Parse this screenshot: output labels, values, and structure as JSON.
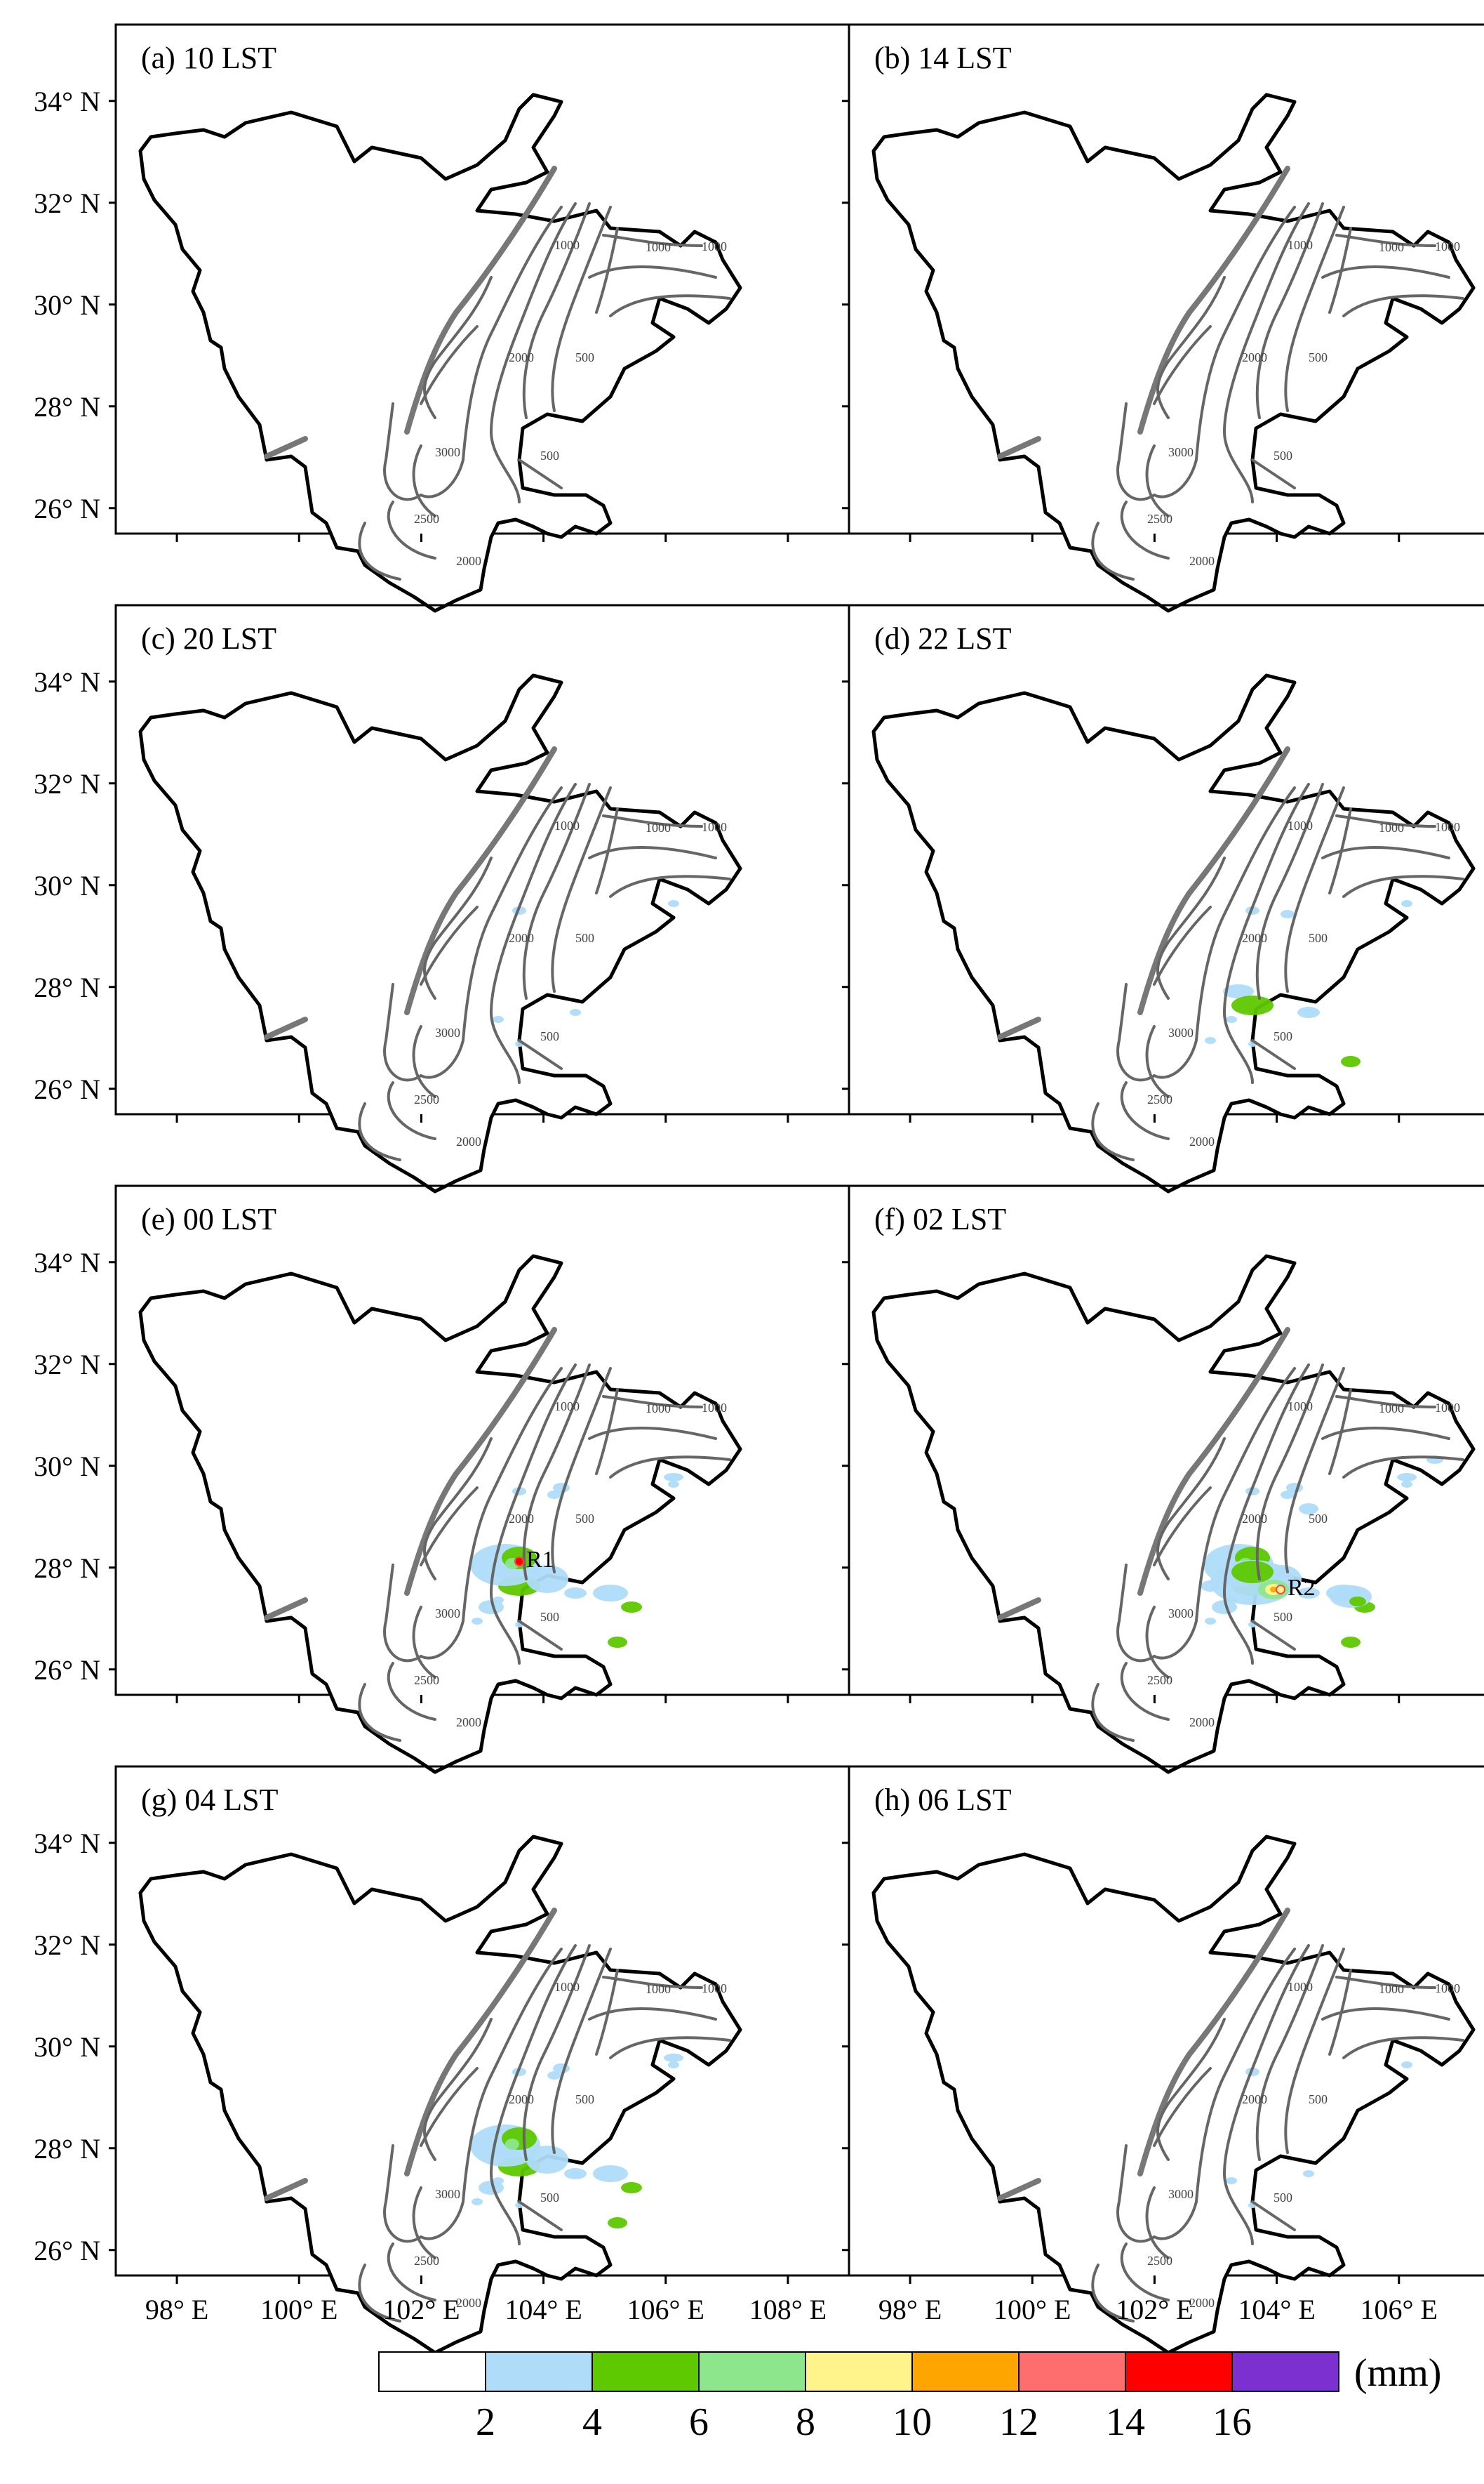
{
  "panels": [
    {
      "id": "a",
      "label": "(a) 10 LST",
      "precip_level": 0,
      "markers": []
    },
    {
      "id": "b",
      "label": "(b) 14 LST",
      "precip_level": 0,
      "markers": []
    },
    {
      "id": "c",
      "label": "(c) 20 LST",
      "precip_level": 1,
      "markers": []
    },
    {
      "id": "d",
      "label": "(d) 22 LST",
      "precip_level": 2,
      "markers": []
    },
    {
      "id": "e",
      "label": "(e) 00 LST",
      "precip_level": 3,
      "markers": [
        "R1"
      ]
    },
    {
      "id": "f",
      "label": "(f) 02 LST",
      "precip_level": 4,
      "markers": [
        "R2"
      ]
    },
    {
      "id": "g",
      "label": "(g) 04 LST",
      "precip_level": 3,
      "markers": []
    },
    {
      "id": "h",
      "label": "(h) 06 LST",
      "precip_level": 1,
      "markers": []
    }
  ],
  "axes": {
    "lat_labels": [
      "34° N",
      "32° N",
      "30° N",
      "28° N",
      "26° N"
    ],
    "lon_labels": [
      "98° E",
      "100° E",
      "102° E",
      "104° E",
      "106° E",
      "108° E"
    ],
    "lat_values": [
      34,
      32,
      30,
      28,
      26
    ],
    "lon_values": [
      98,
      100,
      102,
      104,
      106,
      108
    ],
    "lon_range": [
      97.0,
      109.0
    ],
    "lat_range": [
      25.5,
      35.5
    ]
  },
  "contour_labels": [
    "1000",
    "1000",
    "1000",
    "500",
    "500",
    "2000",
    "3000",
    "2500",
    "2000"
  ],
  "colorbar": {
    "unit": "(mm)",
    "tick_labels": [
      "2",
      "4",
      "6",
      "8",
      "10",
      "12",
      "14",
      "16"
    ],
    "colors": [
      "#ffffff",
      "#afdcf9",
      "#5ec800",
      "#8ee68c",
      "#fff48c",
      "#ffa500",
      "#ff6e6e",
      "#ff0000",
      "#7d30d0"
    ]
  },
  "precip_colors": {
    "light": "#afdcf9",
    "green": "#5ec800",
    "lightgreen": "#8ee68c",
    "yellow": "#fff48c",
    "orange": "#ffa500",
    "red": "#ff0000"
  }
}
